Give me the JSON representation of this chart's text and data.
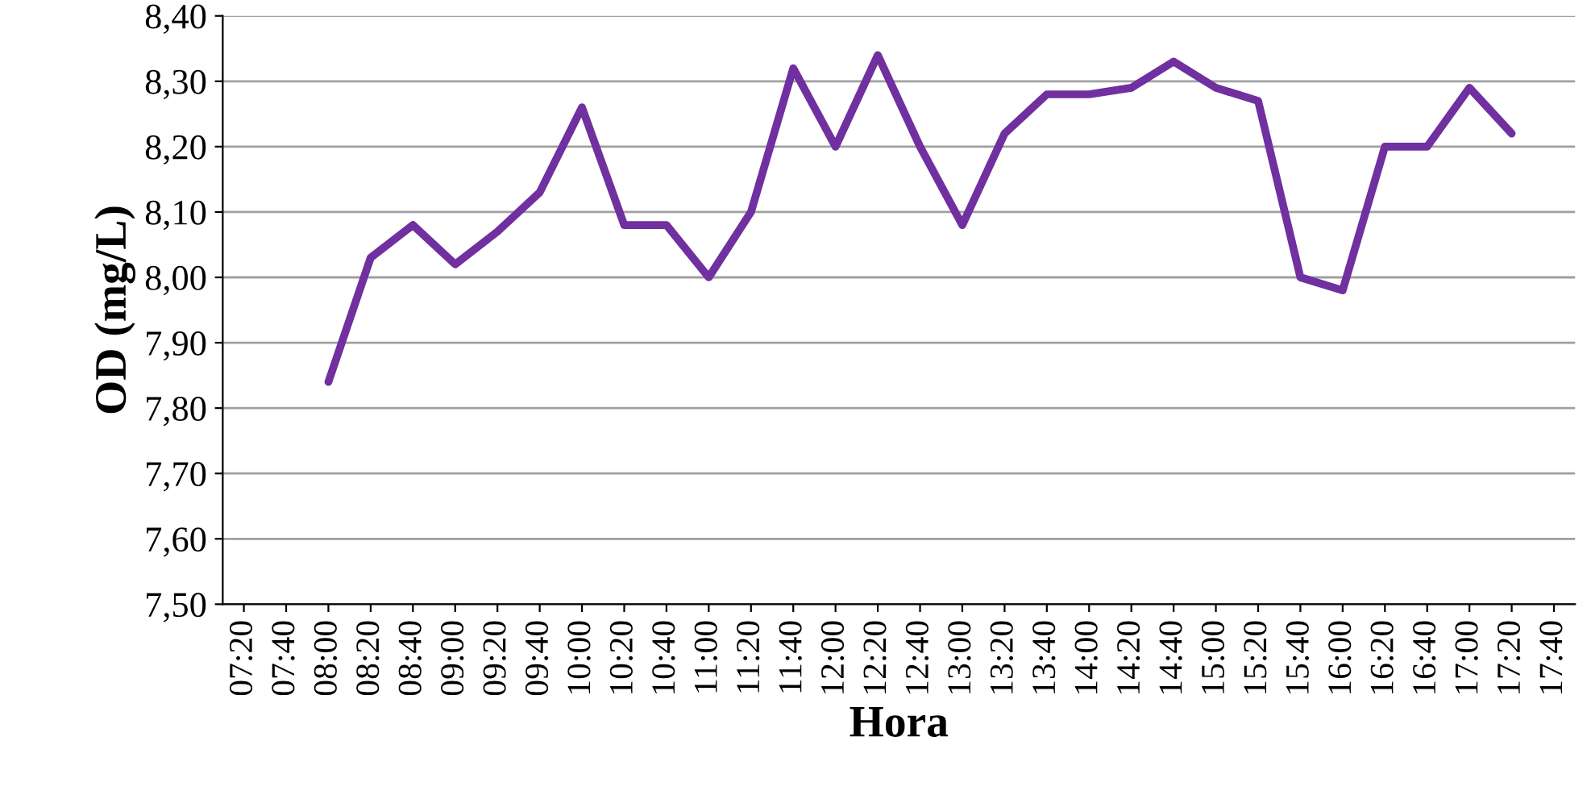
{
  "chart_data": {
    "type": "line",
    "xlabel": "Hora",
    "ylabel": "OD (mg/L)",
    "categories": [
      "07:20",
      "07:40",
      "08:00",
      "08:20",
      "08:40",
      "09:00",
      "09:20",
      "09:40",
      "10:00",
      "10:20",
      "10:40",
      "11:00",
      "11:20",
      "11:40",
      "12:00",
      "12:20",
      "12:40",
      "13:00",
      "13:20",
      "13:40",
      "14:00",
      "14:20",
      "14:40",
      "15:00",
      "15:20",
      "15:40",
      "16:00",
      "16:20",
      "16:40",
      "17:00",
      "17:20",
      "17:40"
    ],
    "series": [
      {
        "color": "#7030a0",
        "values": [
          null,
          null,
          7.84,
          8.03,
          8.08,
          8.02,
          8.07,
          8.13,
          8.26,
          8.08,
          8.08,
          8.0,
          8.1,
          8.32,
          8.2,
          8.34,
          8.2,
          8.08,
          8.22,
          8.28,
          8.28,
          8.29,
          8.33,
          8.29,
          8.27,
          8.0,
          7.98,
          8.2,
          8.2,
          8.29,
          8.22,
          null
        ]
      }
    ],
    "ylim": [
      7.5,
      8.4
    ],
    "yticks": [
      {
        "value": 7.5,
        "label": "7,50"
      },
      {
        "value": 7.6,
        "label": "7,60"
      },
      {
        "value": 7.7,
        "label": "7,70"
      },
      {
        "value": 7.8,
        "label": "7,80"
      },
      {
        "value": 7.9,
        "label": "7,90"
      },
      {
        "value": 8.0,
        "label": "8,00"
      },
      {
        "value": 8.1,
        "label": "8,10"
      },
      {
        "value": 8.2,
        "label": "8,20"
      },
      {
        "value": 8.3,
        "label": "8,30"
      },
      {
        "value": 8.4,
        "label": "8,40"
      }
    ],
    "grid": "y",
    "legend": false,
    "marker": "none",
    "line_style": "solid"
  }
}
